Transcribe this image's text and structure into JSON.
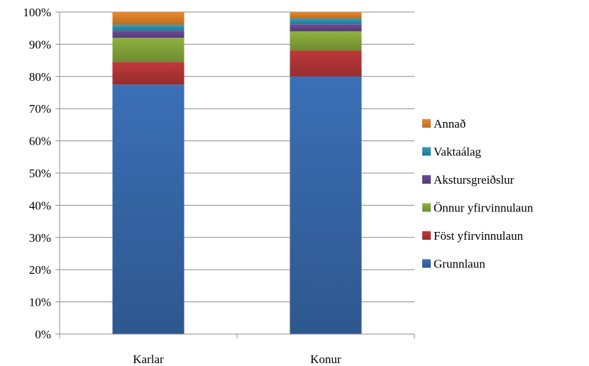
{
  "chart_data": {
    "type": "bar",
    "stacked": true,
    "percent": true,
    "categories": [
      "Karlar",
      "Konur"
    ],
    "y_ticks": [
      "0%",
      "10%",
      "20%",
      "30%",
      "40%",
      "50%",
      "60%",
      "70%",
      "80%",
      "90%",
      "100%"
    ],
    "ylim": [
      0,
      100
    ],
    "grid": true,
    "legend_position": "right",
    "series": [
      {
        "name": "Grunnlaun",
        "color": "#3b6fb6",
        "values": [
          77.5,
          80
        ]
      },
      {
        "name": "Föst yfirvinnulaun",
        "color": "#c0393a",
        "values": [
          7,
          8
        ]
      },
      {
        "name": "Önnur yfirvinnulaun",
        "color": "#8fb23f",
        "values": [
          7.5,
          6
        ]
      },
      {
        "name": "Akstursgreiðslur",
        "color": "#6d4a96",
        "values": [
          2.2,
          2.2
        ]
      },
      {
        "name": "Vaktaálag",
        "color": "#2f9bbd",
        "values": [
          1.8,
          1.8
        ]
      },
      {
        "name": "Annað",
        "color": "#ea8a2d",
        "values": [
          4,
          2
        ]
      }
    ]
  }
}
